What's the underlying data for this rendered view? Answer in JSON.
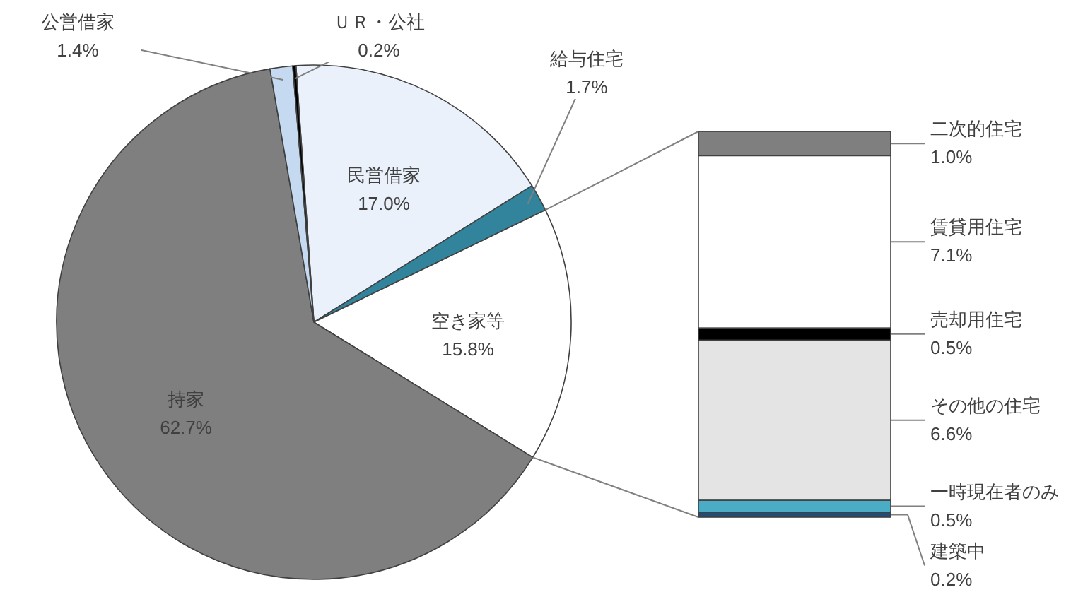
{
  "chart_data": [
    {
      "type": "pie",
      "categories": [
        "民営借家",
        "給与住宅",
        "空き家等",
        "持家",
        "公営借家",
        "ＵＲ・公社"
      ],
      "values": [
        17.0,
        1.7,
        15.8,
        62.7,
        1.4,
        0.2
      ],
      "value_labels": [
        "17.0%",
        "1.7%",
        "15.8%",
        "62.7%",
        "1.4%",
        "0.2%"
      ],
      "colors": [
        "#eaf1fa",
        "#31849b",
        "#ffffff",
        "#7f7f7f",
        "#c5d9f1",
        "#000000"
      ],
      "legend": false
    },
    {
      "type": "bar",
      "stacked": true,
      "categories": [
        null
      ],
      "legend": false,
      "series": [
        {
          "name": "建築中",
          "color": "#1f4e79",
          "values": [
            0.2
          ],
          "value_labels": [
            "0.2%"
          ]
        },
        {
          "name": "一時現在者のみ",
          "color": "#4bacc6",
          "values": [
            0.5
          ],
          "value_labels": [
            "0.5%"
          ]
        },
        {
          "name": "その他の住宅",
          "color": "#e4e4e4",
          "values": [
            6.6
          ],
          "value_labels": [
            "6.6%"
          ]
        },
        {
          "name": "売却用住宅",
          "color": "#000000",
          "values": [
            0.5
          ],
          "value_labels": [
            "0.5%"
          ]
        },
        {
          "name": "賃貸用住宅",
          "color": "#ffffff",
          "values": [
            7.1
          ],
          "value_labels": [
            "7.1%"
          ]
        },
        {
          "name": "二次的住宅",
          "color": "#7f7f7f",
          "values": [
            1.0
          ],
          "value_labels": [
            "1.0%"
          ]
        }
      ]
    }
  ]
}
